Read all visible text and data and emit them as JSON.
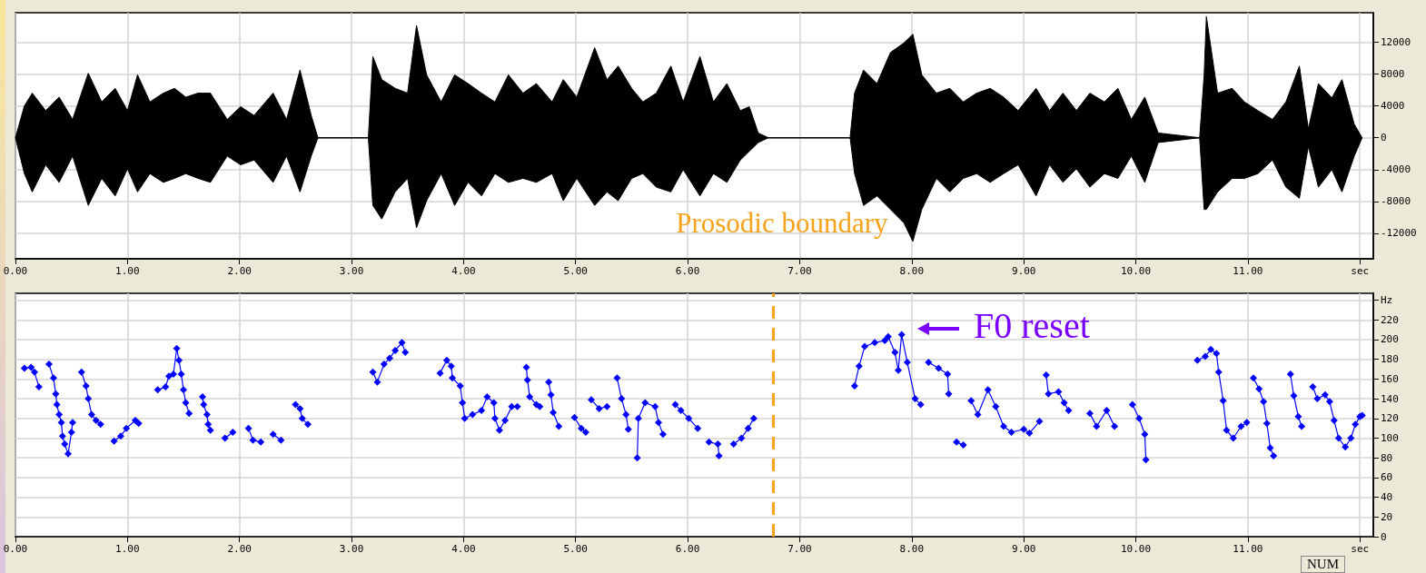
{
  "chart_data": [
    {
      "type": "line",
      "xlim": [
        0,
        12.12
      ],
      "ylim": [
        -15200,
        15700
      ],
      "grid": true,
      "xticks": [
        {
          "value": 0,
          "label": "0.00"
        },
        {
          "value": 1,
          "label": "1.00"
        },
        {
          "value": 2,
          "label": "2.00"
        },
        {
          "value": 3,
          "label": "3.00"
        },
        {
          "value": 4,
          "label": "4.00"
        },
        {
          "value": 5,
          "label": "5.00"
        },
        {
          "value": 6,
          "label": "6.00"
        },
        {
          "value": 7,
          "label": "7.00"
        },
        {
          "value": 8,
          "label": "8.00"
        },
        {
          "value": 9,
          "label": "9.00"
        },
        {
          "value": 10,
          "label": "10.00"
        },
        {
          "value": 11,
          "label": "11.00"
        },
        {
          "value": 12,
          "label": "sec"
        }
      ],
      "yticks": [
        -12000,
        -8000,
        -4000,
        0,
        4000,
        8000,
        12000
      ],
      "x": [
        0,
        0.08,
        0.15,
        0.27,
        0.39,
        0.51,
        0.65,
        0.77,
        0.89,
        1.0,
        1.09,
        1.2,
        1.32,
        1.42,
        1.52,
        1.63,
        1.74,
        1.89,
        2.01,
        2.13,
        2.3,
        2.42,
        2.54,
        2.64,
        2.7,
        3.15,
        3.19,
        3.27,
        3.39,
        3.5,
        3.58,
        3.67,
        3.8,
        3.92,
        4.04,
        4.16,
        4.28,
        4.4,
        4.53,
        4.65,
        4.79,
        4.89,
        5.01,
        5.17,
        5.28,
        5.38,
        5.5,
        5.6,
        5.72,
        5.85,
        5.96,
        6.11,
        6.23,
        6.35,
        6.47,
        6.55,
        6.63,
        6.72,
        7.45,
        7.49,
        7.57,
        7.69,
        7.81,
        7.93,
        8.01,
        8.09,
        8.22,
        8.34,
        8.46,
        8.58,
        8.7,
        8.82,
        8.95,
        9.11,
        9.23,
        9.35,
        9.47,
        9.59,
        9.72,
        9.84,
        9.96,
        10.08,
        10.2,
        10.57,
        10.61,
        10.63,
        10.73,
        10.86,
        10.97,
        11.09,
        11.22,
        11.34,
        11.46,
        11.54,
        11.63,
        11.75,
        11.84,
        11.95,
        12.02
      ],
      "series": [
        {
          "color": "#000000",
          "values": [
            0,
            0,
            0,
            0,
            0,
            0,
            0,
            0,
            0,
            0,
            0,
            0,
            0,
            0,
            0,
            0,
            0,
            0,
            0,
            0,
            0,
            0,
            0,
            0,
            0,
            0,
            0,
            0,
            0,
            0,
            0,
            0,
            0,
            0,
            0,
            0,
            0,
            0,
            0,
            0,
            0,
            0,
            0,
            0,
            0,
            0,
            0,
            0,
            0,
            0,
            0,
            0,
            0,
            0,
            0,
            0,
            0,
            0,
            0,
            0,
            0,
            0,
            0,
            0,
            0,
            0,
            0,
            0,
            0,
            0,
            0,
            0,
            0,
            0,
            0,
            0,
            0,
            0,
            0,
            0,
            0,
            0,
            0,
            0,
            0,
            0,
            0,
            0,
            0,
            0,
            0,
            0,
            0,
            0,
            0,
            0,
            0,
            0,
            0
          ],
          "upper": [
            0,
            4000,
            5600,
            3400,
            5100,
            2300,
            8100,
            4500,
            6200,
            3400,
            7900,
            4500,
            5600,
            6200,
            5100,
            5600,
            5600,
            2300,
            3900,
            2800,
            5600,
            2300,
            8500,
            2800,
            0,
            0,
            10200,
            7300,
            6200,
            5600,
            14100,
            7900,
            4500,
            7900,
            6800,
            5600,
            4500,
            7900,
            5600,
            6800,
            4500,
            7300,
            5100,
            11300,
            7300,
            9000,
            6200,
            4500,
            5600,
            9000,
            4500,
            10200,
            4500,
            6800,
            3400,
            3900,
            600,
            0,
            0,
            5600,
            8500,
            6800,
            10700,
            11900,
            13000,
            7900,
            5600,
            6200,
            4500,
            5600,
            6200,
            5100,
            3400,
            6200,
            3400,
            5600,
            3400,
            5600,
            4500,
            6200,
            2300,
            5100,
            600,
            0,
            7900,
            15200,
            5600,
            6200,
            4500,
            3400,
            2300,
            4500,
            9000,
            1100,
            6800,
            5000,
            7300,
            1700,
            0
          ],
          "lower": [
            0,
            -4500,
            -6800,
            -3400,
            -5600,
            -2300,
            -8500,
            -5100,
            -7300,
            -3900,
            -6800,
            -4500,
            -5600,
            -5100,
            -4500,
            -5100,
            -5600,
            -2300,
            -3400,
            -2800,
            -5600,
            -2300,
            -6800,
            -2300,
            0,
            0,
            -8500,
            -10200,
            -6800,
            -5100,
            -11300,
            -7900,
            -4500,
            -8500,
            -5600,
            -7300,
            -4500,
            -5600,
            -5100,
            -5600,
            -4500,
            -7900,
            -5100,
            -8500,
            -6800,
            -7900,
            -5100,
            -4500,
            -6200,
            -6800,
            -4000,
            -7300,
            -4500,
            -5600,
            -2800,
            -1700,
            -600,
            0,
            0,
            -4500,
            -8500,
            -7300,
            -9000,
            -10700,
            -13000,
            -9000,
            -5100,
            -6800,
            -5100,
            -4500,
            -5600,
            -4500,
            -3400,
            -7300,
            -3400,
            -5600,
            -3900,
            -6200,
            -4500,
            -5100,
            -2300,
            -5600,
            -600,
            0,
            -9000,
            -9000,
            -6800,
            -5100,
            -5100,
            -4500,
            -2800,
            -6200,
            -7600,
            -1100,
            -6200,
            -4000,
            -6800,
            -2300,
            0
          ]
        }
      ]
    },
    {
      "type": "line",
      "xlim": [
        0,
        12.12
      ],
      "ylim": [
        0,
        247
      ],
      "grid": true,
      "marker": "diamond",
      "xticks": [
        {
          "value": 0,
          "label": "0.00"
        },
        {
          "value": 1,
          "label": "1.00"
        },
        {
          "value": 2,
          "label": "2.00"
        },
        {
          "value": 3,
          "label": "3.00"
        },
        {
          "value": 4,
          "label": "4.00"
        },
        {
          "value": 5,
          "label": "5.00"
        },
        {
          "value": 6,
          "label": "6.00"
        },
        {
          "value": 7,
          "label": "7.00"
        },
        {
          "value": 8,
          "label": "8.00"
        },
        {
          "value": 9,
          "label": "9.00"
        },
        {
          "value": 10,
          "label": "10.00"
        },
        {
          "value": 11,
          "label": "11.00"
        },
        {
          "value": 12,
          "label": "sec"
        }
      ],
      "yticks": [
        0,
        20,
        40,
        60,
        80,
        100,
        120,
        140,
        160,
        180,
        200,
        220,
        {
          "value": 240,
          "label": "Hz"
        }
      ],
      "x": [
        0.08,
        0.14,
        0.17,
        0.21,
        0.25,
        0.3,
        0.34,
        0.36,
        0.37,
        0.39,
        0.41,
        0.42,
        0.44,
        0.47,
        0.5,
        0.51,
        0.55,
        0.59,
        0.63,
        0.65,
        0.68,
        0.72,
        0.76,
        0.82,
        0.88,
        0.94,
        0.99,
        1.07,
        1.1,
        1.18,
        1.27,
        1.34,
        1.37,
        1.41,
        1.44,
        1.46,
        1.48,
        1.5,
        1.52,
        1.55,
        1.61,
        1.67,
        1.68,
        1.71,
        1.72,
        1.74,
        1.8,
        1.87,
        1.94,
        2.01,
        2.08,
        2.12,
        2.19,
        2.25,
        2.3,
        2.37,
        2.44,
        2.5,
        2.54,
        2.56,
        2.61,
        2.9,
        3.19,
        3.23,
        3.29,
        3.34,
        3.39,
        3.45,
        3.48,
        3.65,
        3.79,
        3.85,
        3.89,
        3.9,
        3.97,
        3.99,
        4.01,
        4.08,
        4.16,
        4.21,
        4.27,
        4.28,
        4.32,
        4.37,
        4.43,
        4.48,
        4.52,
        4.56,
        4.57,
        4.59,
        4.65,
        4.68,
        4.72,
        4.76,
        4.78,
        4.8,
        4.85,
        4.92,
        4.99,
        5.05,
        5.09,
        5.12,
        5.14,
        5.21,
        5.28,
        5.33,
        5.37,
        5.41,
        5.45,
        5.47,
        5.51,
        5.55,
        5.56,
        5.62,
        5.71,
        5.74,
        5.78,
        5.84,
        5.89,
        5.94,
        6.01,
        6.09,
        6.14,
        6.19,
        6.27,
        6.28,
        6.35,
        6.41,
        6.48,
        6.54,
        6.59,
        7.0,
        7.49,
        7.53,
        7.58,
        7.67,
        7.76,
        7.79,
        7.85,
        7.88,
        7.91,
        7.96,
        8.03,
        8.08,
        8.12,
        8.15,
        8.24,
        8.32,
        8.33,
        8.37,
        8.4,
        8.46,
        8.49,
        8.53,
        8.59,
        8.68,
        8.75,
        8.82,
        8.89,
        9.0,
        9.05,
        9.14,
        9.17,
        9.2,
        9.22,
        9.31,
        9.36,
        9.4,
        9.5,
        9.59,
        9.65,
        9.74,
        9.81,
        9.9,
        9.97,
        10.03,
        10.08,
        10.09,
        10.3,
        10.55,
        10.62,
        10.67,
        10.72,
        10.74,
        10.78,
        10.81,
        10.87,
        10.94,
        10.99,
        11.02,
        11.05,
        11.1,
        11.14,
        11.17,
        11.2,
        11.23,
        11.3,
        11.38,
        11.41,
        11.45,
        11.48,
        11.53,
        11.58,
        11.62,
        11.69,
        11.73,
        11.77,
        11.81,
        11.87,
        11.92,
        11.96,
        12.0,
        12.02
      ],
      "series": [
        {
          "color": "#0000ff",
          "values": [
            171,
            172,
            167,
            152,
            null,
            175,
            161,
            145,
            134,
            124,
            116,
            102,
            94,
            84,
            106,
            116,
            null,
            167,
            153,
            140,
            124,
            118,
            114,
            null,
            97,
            102,
            110,
            118,
            115,
            null,
            149,
            152,
            163,
            165,
            191,
            179,
            165,
            149,
            136,
            125,
            null,
            142,
            134,
            124,
            114,
            108,
            null,
            100,
            106,
            null,
            110,
            98,
            96,
            null,
            104,
            98,
            null,
            134,
            130,
            120,
            114,
            null,
            167,
            157,
            175,
            181,
            189,
            197,
            187,
            null,
            166,
            179,
            173,
            161,
            153,
            136,
            120,
            124,
            128,
            142,
            136,
            120,
            108,
            118,
            132,
            132,
            null,
            172,
            159,
            142,
            134,
            132,
            null,
            157,
            144,
            126,
            112,
            null,
            121,
            110,
            106,
            null,
            139,
            130,
            132,
            null,
            161,
            140,
            124,
            109,
            null,
            80,
            120,
            136,
            132,
            116,
            104,
            null,
            134,
            128,
            120,
            110,
            null,
            96,
            94,
            82,
            null,
            94,
            100,
            110,
            120,
            null,
            153,
            173,
            193,
            197,
            199,
            203,
            187,
            169,
            205,
            177,
            140,
            134,
            null,
            177,
            171,
            165,
            145,
            null,
            96,
            93,
            null,
            138,
            124,
            149,
            132,
            112,
            106,
            109,
            105,
            117,
            null,
            164,
            145,
            147,
            136,
            128,
            null,
            125,
            112,
            128,
            112,
            null,
            134,
            120,
            104,
            78,
            null,
            179,
            183,
            190,
            186,
            167,
            138,
            108,
            100,
            112,
            116,
            null,
            161,
            150,
            137,
            115,
            90,
            82,
            null,
            165,
            143,
            122,
            112,
            null,
            152,
            140,
            144,
            137,
            118,
            100,
            91,
            100,
            114,
            122,
            123
          ]
        }
      ],
      "ref_lines": [
        {
          "axis": "x",
          "value": 6.76,
          "label": "Prosodic boundary",
          "color": "#f7a21b",
          "line_style": "dashed"
        }
      ],
      "annotations": [
        "F0 reset",
        "NUM"
      ]
    }
  ]
}
